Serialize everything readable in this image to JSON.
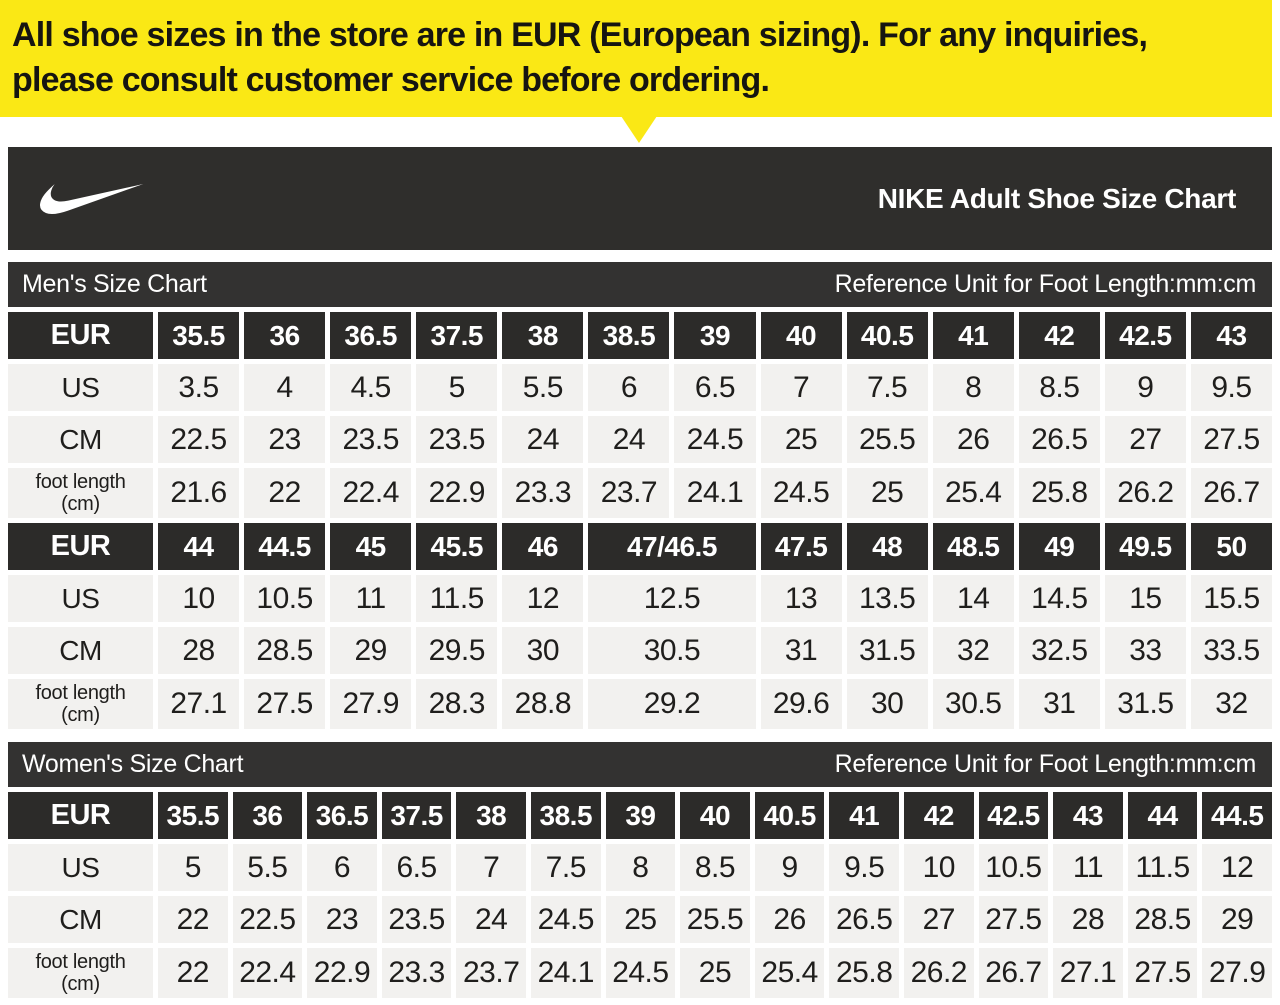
{
  "colors": {
    "banner_bg": "#FAE815",
    "banner_text": "#161511",
    "header_bg": "#2F2E2C",
    "bar_bg": "#333231",
    "cell_dark": "#2C2B29",
    "cell_light": "#F2F1EF"
  },
  "banner": {
    "text": "All shoe sizes in the store are in EUR (European sizing). For any inquiries, please consult customer service before ordering."
  },
  "header": {
    "logo": "nike-swoosh-icon",
    "title": "NIKE Adult Shoe Size Chart"
  },
  "sections": [
    {
      "title": "Men's Size Chart",
      "reference": "Reference Unit for Foot Length:mm:cm",
      "tables": [
        {
          "units": 13,
          "rows": [
            {
              "label": "EUR",
              "dark": true,
              "cells": [
                "35.5",
                "36",
                "36.5",
                "37.5",
                "38",
                "38.5",
                "39",
                "40",
                "40.5",
                "41",
                "42",
                "42.5",
                "43"
              ]
            },
            {
              "label": "US",
              "cells": [
                "3.5",
                "4",
                "4.5",
                "5",
                "5.5",
                "6",
                "6.5",
                "7",
                "7.5",
                "8",
                "8.5",
                "9",
                "9.5"
              ]
            },
            {
              "label": "CM",
              "cells": [
                "22.5",
                "23",
                "23.5",
                "23.5",
                "24",
                "24",
                "24.5",
                "25",
                "25.5",
                "26",
                "26.5",
                "27",
                "27.5"
              ]
            },
            {
              "label": "foot length\n(cm)",
              "tall": true,
              "cells": [
                "21.6",
                "22",
                "22.4",
                "22.9",
                "23.3",
                "23.7",
                "24.1",
                "24.5",
                "25",
                "25.4",
                "25.8",
                "26.2",
                "26.7"
              ]
            }
          ]
        },
        {
          "units": 13,
          "rows": [
            {
              "label": "EUR",
              "dark": true,
              "cells": [
                "44",
                "44.5",
                "45",
                "45.5",
                "46",
                {
                  "t": "47/46.5",
                  "span": 2
                },
                "47.5",
                "48",
                "48.5",
                "49",
                "49.5",
                "50"
              ]
            },
            {
              "label": "US",
              "cells": [
                "10",
                "10.5",
                "11",
                "11.5",
                "12",
                {
                  "t": "12.5",
                  "span": 2
                },
                "13",
                "13.5",
                "14",
                "14.5",
                "15",
                "15.5"
              ]
            },
            {
              "label": "CM",
              "cells": [
                "28",
                "28.5",
                "29",
                "29.5",
                "30",
                {
                  "t": "30.5",
                  "span": 2
                },
                "31",
                "31.5",
                "32",
                "32.5",
                "33",
                "33.5"
              ]
            },
            {
              "label": "foot length\n(cm)",
              "tall": true,
              "cells": [
                "27.1",
                "27.5",
                "27.9",
                "28.3",
                "28.8",
                {
                  "t": "29.2",
                  "span": 2
                },
                "29.6",
                "30",
                "30.5",
                "31",
                "31.5",
                "32"
              ]
            }
          ]
        }
      ]
    },
    {
      "title": "Women's Size Chart",
      "reference": "Reference Unit for Foot Length:mm:cm",
      "tables": [
        {
          "units": 15,
          "rows": [
            {
              "label": "EUR",
              "dark": true,
              "cells": [
                "35.5",
                "36",
                "36.5",
                "37.5",
                "38",
                "38.5",
                "39",
                "40",
                "40.5",
                "41",
                "42",
                "42.5",
                "43",
                "44",
                "44.5"
              ]
            },
            {
              "label": "US",
              "cells": [
                "5",
                "5.5",
                "6",
                "6.5",
                "7",
                "7.5",
                "8",
                "8.5",
                "9",
                "9.5",
                "10",
                "10.5",
                "11",
                "11.5",
                "12"
              ]
            },
            {
              "label": "CM",
              "cells": [
                "22",
                "22.5",
                "23",
                "23.5",
                "24",
                "24.5",
                "25",
                "25.5",
                "26",
                "26.5",
                "27",
                "27.5",
                "28",
                "28.5",
                "29"
              ]
            },
            {
              "label": "foot length\n(cm)",
              "tall": true,
              "cells": [
                "22",
                "22.4",
                "22.9",
                "23.3",
                "23.7",
                "24.1",
                "24.5",
                "25",
                "25.4",
                "25.8",
                "26.2",
                "26.7",
                "27.1",
                "27.5",
                "27.9"
              ]
            }
          ]
        }
      ]
    }
  ],
  "chart_data": [
    {
      "type": "table",
      "title": "Men's Size Chart (part 1)",
      "note": "Reference Unit for Foot Length:mm:cm",
      "rows": {
        "EUR": [
          "35.5",
          "36",
          "36.5",
          "37.5",
          "38",
          "38.5",
          "39",
          "40",
          "40.5",
          "41",
          "42",
          "42.5",
          "43"
        ],
        "US": [
          3.5,
          4,
          4.5,
          5,
          5.5,
          6,
          6.5,
          7,
          7.5,
          8,
          8.5,
          9,
          9.5
        ],
        "CM": [
          22.5,
          23,
          23.5,
          23.5,
          24,
          24,
          24.5,
          25,
          25.5,
          26,
          26.5,
          27,
          27.5
        ],
        "foot_length_cm": [
          21.6,
          22,
          22.4,
          22.9,
          23.3,
          23.7,
          24.1,
          24.5,
          25,
          25.4,
          25.8,
          26.2,
          26.7
        ]
      }
    },
    {
      "type": "table",
      "title": "Men's Size Chart (part 2)",
      "note": "Column EUR 47/46.5 spans two column widths",
      "rows": {
        "EUR": [
          "44",
          "44.5",
          "45",
          "45.5",
          "46",
          "47/46.5",
          "47.5",
          "48",
          "48.5",
          "49",
          "49.5",
          "50"
        ],
        "US": [
          10,
          10.5,
          11,
          11.5,
          12,
          12.5,
          13,
          13.5,
          14,
          14.5,
          15,
          15.5
        ],
        "CM": [
          28,
          28.5,
          29,
          29.5,
          30,
          30.5,
          31,
          31.5,
          32,
          32.5,
          33,
          33.5
        ],
        "foot_length_cm": [
          27.1,
          27.5,
          27.9,
          28.3,
          28.8,
          29.2,
          29.6,
          30,
          30.5,
          31,
          31.5,
          32
        ]
      }
    },
    {
      "type": "table",
      "title": "Women's Size Chart",
      "note": "Reference Unit for Foot Length:mm:cm",
      "rows": {
        "EUR": [
          "35.5",
          "36",
          "36.5",
          "37.5",
          "38",
          "38.5",
          "39",
          "40",
          "40.5",
          "41",
          "42",
          "42.5",
          "43",
          "44",
          "44.5"
        ],
        "US": [
          5,
          5.5,
          6,
          6.5,
          7,
          7.5,
          8,
          8.5,
          9,
          9.5,
          10,
          10.5,
          11,
          11.5,
          12
        ],
        "CM": [
          22,
          22.5,
          23,
          23.5,
          24,
          24.5,
          25,
          25.5,
          26,
          26.5,
          27,
          27.5,
          28,
          28.5,
          29
        ],
        "foot_length_cm": [
          22,
          22.4,
          22.9,
          23.3,
          23.7,
          24.1,
          24.5,
          25,
          25.4,
          25.8,
          26.2,
          26.7,
          27.1,
          27.5,
          27.9
        ]
      }
    }
  ]
}
